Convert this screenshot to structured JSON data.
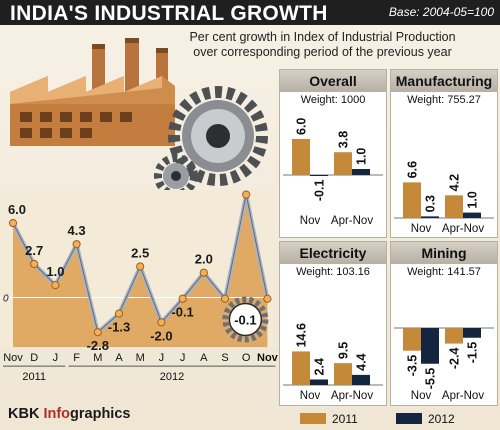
{
  "header": {
    "title": "INDIA'S INDUSTRIAL GROWTH",
    "base": "Base: 2004-05=100",
    "subtitle_line1": "Per cent growth in Index of Industrial Production",
    "subtitle_line2": "over corresponding period of the previous year"
  },
  "brand": {
    "prefix": "KBK ",
    "highlight": "Info",
    "suffix": "graphics"
  },
  "colors": {
    "y2011": "#c48a3a",
    "y2012": "#14263f",
    "area": "#e0a45a",
    "line": "#a9b4c4",
    "marker": "#f1b15a"
  },
  "legend": [
    {
      "label": "2011",
      "color": "#c48a3a"
    },
    {
      "label": "2012",
      "color": "#14263f"
    }
  ],
  "chart_data": [
    {
      "type": "line",
      "title": "",
      "categories": [
        "Nov",
        "D",
        "J",
        "F",
        "M",
        "A",
        "M",
        "J",
        "J",
        "A",
        "S",
        "O",
        "Nov"
      ],
      "year_labels": [
        {
          "label": "2011"
        },
        {
          "label": "2012"
        }
      ],
      "values": [
        6.0,
        2.7,
        1.0,
        4.3,
        -2.8,
        -1.3,
        2.5,
        -2.0,
        -0.1,
        2.0,
        -0.1,
        8.3,
        -0.1
      ],
      "value_labels": [
        "6.0",
        "2.7",
        "1.0",
        "4.3",
        "-2.8",
        "-1.3",
        "2.5",
        "-2.0",
        "-0.1",
        "2.0",
        "",
        "8.3",
        "-0.1"
      ],
      "zero_label": "0",
      "ylim": [
        -4,
        9
      ],
      "fill": "area"
    },
    {
      "type": "bar",
      "title": "Overall",
      "weight": "Weight: 1000",
      "categories": [
        "Nov",
        "Apr-Nov"
      ],
      "series": [
        {
          "name": "2011",
          "values": [
            6.0,
            3.8
          ],
          "labels": [
            "6.0",
            "3.8"
          ]
        },
        {
          "name": "2012",
          "values": [
            -0.1,
            1.0
          ],
          "labels": [
            "-0.1",
            "1.0"
          ]
        }
      ]
    },
    {
      "type": "bar",
      "title": "Manufacturing",
      "weight": "Weight: 755.27",
      "categories": [
        "Nov",
        "Apr-Nov"
      ],
      "series": [
        {
          "name": "2011",
          "values": [
            6.6,
            4.2
          ],
          "labels": [
            "6.6",
            "4.2"
          ]
        },
        {
          "name": "2012",
          "values": [
            0.3,
            1.0
          ],
          "labels": [
            "0.3",
            "1.0"
          ]
        }
      ]
    },
    {
      "type": "bar",
      "title": "Electricity",
      "weight": "Weight: 103.16",
      "categories": [
        "Nov",
        "Apr-Nov"
      ],
      "series": [
        {
          "name": "2011",
          "values": [
            14.6,
            9.5
          ],
          "labels": [
            "14.6",
            "9.5"
          ]
        },
        {
          "name": "2012",
          "values": [
            2.4,
            4.4
          ],
          "labels": [
            "2.4",
            "4.4"
          ]
        }
      ]
    },
    {
      "type": "bar",
      "title": "Mining",
      "weight": "Weight: 141.57",
      "categories": [
        "Nov",
        "Apr-Nov"
      ],
      "series": [
        {
          "name": "2011",
          "values": [
            -3.5,
            -2.4
          ],
          "labels": [
            "-3.5",
            "-2.4"
          ]
        },
        {
          "name": "2012",
          "values": [
            -5.5,
            -1.5
          ],
          "labels": [
            "-5.5",
            "-1.5"
          ]
        }
      ]
    }
  ]
}
